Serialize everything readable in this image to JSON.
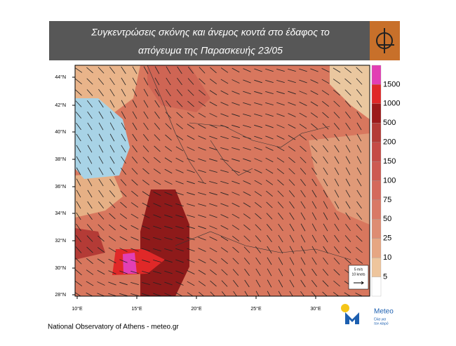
{
  "header": {
    "title_lines": [
      "Συγκεντρώσεις σκόνης και άνεμος κοντά στο έδαφος το",
      "απόγευμα της Παρασκευής 23/05"
    ]
  },
  "map": {
    "lat_labels": [
      "44°N",
      "42°N",
      "40°N",
      "38°N",
      "36°N",
      "34°N",
      "32°N",
      "30°N",
      "28°N"
    ],
    "lon_labels": [
      "10°E",
      "15°E",
      "20°E",
      "25°E",
      "30°E"
    ]
  },
  "colorbar": {
    "labels": [
      "1500",
      "1000",
      "500",
      "200",
      "150",
      "100",
      "75",
      "50",
      "25",
      "10",
      "5"
    ],
    "colors": [
      "#e23fb4",
      "#e02828",
      "#9c1a1a",
      "#b43b36",
      "#c54b46",
      "#cd5a52",
      "#d4695c",
      "#d97966",
      "#de8c72",
      "#e6a682",
      "#eec59c",
      "#ffffff"
    ]
  },
  "reference": {
    "lines": [
      "5 m/s",
      "10 knots"
    ]
  },
  "logo": {
    "name": "Meteo",
    "tagline": [
      "Όλα για",
      "τον καιρό"
    ]
  },
  "footer": "National Observatory of Athens - meteo.gr"
}
